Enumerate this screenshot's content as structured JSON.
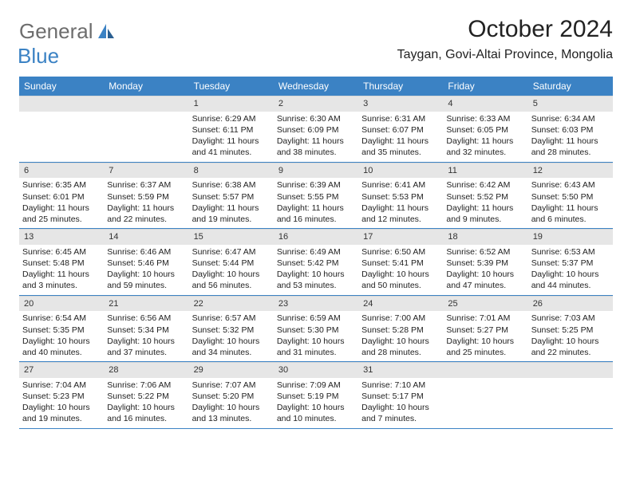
{
  "logo": {
    "general": "General",
    "blue": "Blue"
  },
  "title": "October 2024",
  "location": "Taygan, Govi-Altai Province, Mongolia",
  "colors": {
    "headerBlue": "#3b82c4",
    "logoGray": "#6d6d6d",
    "dayNumBg": "#e6e6e6"
  },
  "weekdays": [
    "Sunday",
    "Monday",
    "Tuesday",
    "Wednesday",
    "Thursday",
    "Friday",
    "Saturday"
  ],
  "weeks": [
    [
      {
        "empty": true
      },
      {
        "empty": true
      },
      {
        "num": "1",
        "sunrise": "Sunrise: 6:29 AM",
        "sunset": "Sunset: 6:11 PM",
        "day1": "Daylight: 11 hours",
        "day2": "and 41 minutes."
      },
      {
        "num": "2",
        "sunrise": "Sunrise: 6:30 AM",
        "sunset": "Sunset: 6:09 PM",
        "day1": "Daylight: 11 hours",
        "day2": "and 38 minutes."
      },
      {
        "num": "3",
        "sunrise": "Sunrise: 6:31 AM",
        "sunset": "Sunset: 6:07 PM",
        "day1": "Daylight: 11 hours",
        "day2": "and 35 minutes."
      },
      {
        "num": "4",
        "sunrise": "Sunrise: 6:33 AM",
        "sunset": "Sunset: 6:05 PM",
        "day1": "Daylight: 11 hours",
        "day2": "and 32 minutes."
      },
      {
        "num": "5",
        "sunrise": "Sunrise: 6:34 AM",
        "sunset": "Sunset: 6:03 PM",
        "day1": "Daylight: 11 hours",
        "day2": "and 28 minutes."
      }
    ],
    [
      {
        "num": "6",
        "sunrise": "Sunrise: 6:35 AM",
        "sunset": "Sunset: 6:01 PM",
        "day1": "Daylight: 11 hours",
        "day2": "and 25 minutes."
      },
      {
        "num": "7",
        "sunrise": "Sunrise: 6:37 AM",
        "sunset": "Sunset: 5:59 PM",
        "day1": "Daylight: 11 hours",
        "day2": "and 22 minutes."
      },
      {
        "num": "8",
        "sunrise": "Sunrise: 6:38 AM",
        "sunset": "Sunset: 5:57 PM",
        "day1": "Daylight: 11 hours",
        "day2": "and 19 minutes."
      },
      {
        "num": "9",
        "sunrise": "Sunrise: 6:39 AM",
        "sunset": "Sunset: 5:55 PM",
        "day1": "Daylight: 11 hours",
        "day2": "and 16 minutes."
      },
      {
        "num": "10",
        "sunrise": "Sunrise: 6:41 AM",
        "sunset": "Sunset: 5:53 PM",
        "day1": "Daylight: 11 hours",
        "day2": "and 12 minutes."
      },
      {
        "num": "11",
        "sunrise": "Sunrise: 6:42 AM",
        "sunset": "Sunset: 5:52 PM",
        "day1": "Daylight: 11 hours",
        "day2": "and 9 minutes."
      },
      {
        "num": "12",
        "sunrise": "Sunrise: 6:43 AM",
        "sunset": "Sunset: 5:50 PM",
        "day1": "Daylight: 11 hours",
        "day2": "and 6 minutes."
      }
    ],
    [
      {
        "num": "13",
        "sunrise": "Sunrise: 6:45 AM",
        "sunset": "Sunset: 5:48 PM",
        "day1": "Daylight: 11 hours",
        "day2": "and 3 minutes."
      },
      {
        "num": "14",
        "sunrise": "Sunrise: 6:46 AM",
        "sunset": "Sunset: 5:46 PM",
        "day1": "Daylight: 10 hours",
        "day2": "and 59 minutes."
      },
      {
        "num": "15",
        "sunrise": "Sunrise: 6:47 AM",
        "sunset": "Sunset: 5:44 PM",
        "day1": "Daylight: 10 hours",
        "day2": "and 56 minutes."
      },
      {
        "num": "16",
        "sunrise": "Sunrise: 6:49 AM",
        "sunset": "Sunset: 5:42 PM",
        "day1": "Daylight: 10 hours",
        "day2": "and 53 minutes."
      },
      {
        "num": "17",
        "sunrise": "Sunrise: 6:50 AM",
        "sunset": "Sunset: 5:41 PM",
        "day1": "Daylight: 10 hours",
        "day2": "and 50 minutes."
      },
      {
        "num": "18",
        "sunrise": "Sunrise: 6:52 AM",
        "sunset": "Sunset: 5:39 PM",
        "day1": "Daylight: 10 hours",
        "day2": "and 47 minutes."
      },
      {
        "num": "19",
        "sunrise": "Sunrise: 6:53 AM",
        "sunset": "Sunset: 5:37 PM",
        "day1": "Daylight: 10 hours",
        "day2": "and 44 minutes."
      }
    ],
    [
      {
        "num": "20",
        "sunrise": "Sunrise: 6:54 AM",
        "sunset": "Sunset: 5:35 PM",
        "day1": "Daylight: 10 hours",
        "day2": "and 40 minutes."
      },
      {
        "num": "21",
        "sunrise": "Sunrise: 6:56 AM",
        "sunset": "Sunset: 5:34 PM",
        "day1": "Daylight: 10 hours",
        "day2": "and 37 minutes."
      },
      {
        "num": "22",
        "sunrise": "Sunrise: 6:57 AM",
        "sunset": "Sunset: 5:32 PM",
        "day1": "Daylight: 10 hours",
        "day2": "and 34 minutes."
      },
      {
        "num": "23",
        "sunrise": "Sunrise: 6:59 AM",
        "sunset": "Sunset: 5:30 PM",
        "day1": "Daylight: 10 hours",
        "day2": "and 31 minutes."
      },
      {
        "num": "24",
        "sunrise": "Sunrise: 7:00 AM",
        "sunset": "Sunset: 5:28 PM",
        "day1": "Daylight: 10 hours",
        "day2": "and 28 minutes."
      },
      {
        "num": "25",
        "sunrise": "Sunrise: 7:01 AM",
        "sunset": "Sunset: 5:27 PM",
        "day1": "Daylight: 10 hours",
        "day2": "and 25 minutes."
      },
      {
        "num": "26",
        "sunrise": "Sunrise: 7:03 AM",
        "sunset": "Sunset: 5:25 PM",
        "day1": "Daylight: 10 hours",
        "day2": "and 22 minutes."
      }
    ],
    [
      {
        "num": "27",
        "sunrise": "Sunrise: 7:04 AM",
        "sunset": "Sunset: 5:23 PM",
        "day1": "Daylight: 10 hours",
        "day2": "and 19 minutes."
      },
      {
        "num": "28",
        "sunrise": "Sunrise: 7:06 AM",
        "sunset": "Sunset: 5:22 PM",
        "day1": "Daylight: 10 hours",
        "day2": "and 16 minutes."
      },
      {
        "num": "29",
        "sunrise": "Sunrise: 7:07 AM",
        "sunset": "Sunset: 5:20 PM",
        "day1": "Daylight: 10 hours",
        "day2": "and 13 minutes."
      },
      {
        "num": "30",
        "sunrise": "Sunrise: 7:09 AM",
        "sunset": "Sunset: 5:19 PM",
        "day1": "Daylight: 10 hours",
        "day2": "and 10 minutes."
      },
      {
        "num": "31",
        "sunrise": "Sunrise: 7:10 AM",
        "sunset": "Sunset: 5:17 PM",
        "day1": "Daylight: 10 hours",
        "day2": "and 7 minutes."
      },
      {
        "empty": true
      },
      {
        "empty": true
      }
    ]
  ]
}
